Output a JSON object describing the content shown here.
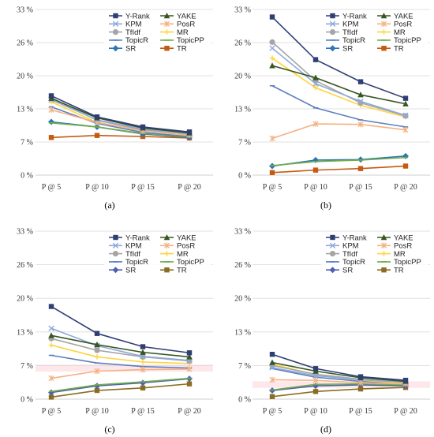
{
  "chart_data": [
    {
      "type": "line",
      "panel_label": "(a)",
      "categories": [
        "P @ 5",
        "P @ 10",
        "P @ 15",
        "P @ 20"
      ],
      "y_ticks": [
        "0 %",
        "7 %",
        "13 %",
        "20 %",
        "26 %",
        "33 %"
      ],
      "ylim": [
        0,
        33
      ],
      "legend_position": "top-right",
      "highlight_band": null,
      "series": [
        {
          "name": "Y-Rank",
          "color": "#2f3f73",
          "marker": "square",
          "values": [
            15.8,
            11.6,
            9.6,
            8.6
          ]
        },
        {
          "name": "YAKE",
          "color": "#375623",
          "marker": "triangle",
          "values": [
            15.3,
            11.4,
            9.4,
            8.4
          ]
        },
        {
          "name": "KPM",
          "color": "#8ea9db",
          "marker": "x",
          "values": [
            15.0,
            11.0,
            9.2,
            8.2
          ]
        },
        {
          "name": "PosR",
          "color": "#f4b183",
          "marker": "star",
          "values": [
            13.0,
            10.5,
            8.8,
            8.0
          ]
        },
        {
          "name": "TfIdf",
          "color": "#a5a5a5",
          "marker": "circle",
          "values": [
            15.4,
            10.9,
            9.0,
            8.1
          ]
        },
        {
          "name": "MR",
          "color": "#ffd43b",
          "marker": "plus",
          "values": [
            14.6,
            10.5,
            8.8,
            7.9
          ]
        },
        {
          "name": "TopicR",
          "color": "#5b7fbf",
          "marker": "dash",
          "values": [
            13.6,
            10.3,
            8.5,
            7.7
          ]
        },
        {
          "name": "TopicPP",
          "color": "#70ad47",
          "marker": "dash",
          "values": [
            10.4,
            9.6,
            8.3,
            7.6
          ]
        },
        {
          "name": "SR",
          "color": "#2e75b6",
          "marker": "diamond",
          "values": [
            10.6,
            9.6,
            8.2,
            7.5
          ]
        },
        {
          "name": "TR",
          "color": "#c55a11",
          "marker": "square",
          "values": [
            7.5,
            7.9,
            7.7,
            7.4
          ]
        }
      ]
    },
    {
      "type": "line",
      "panel_label": "(b)",
      "categories": [
        "P @ 5",
        "P @ 10",
        "P @ 15",
        "P @ 20"
      ],
      "y_ticks": [
        "0 %",
        "7 %",
        "13 %",
        "20 %",
        "26 %",
        "33 %"
      ],
      "ylim": [
        0,
        33
      ],
      "legend_position": "top-right",
      "highlight_band": null,
      "series": [
        {
          "name": "Y-Rank",
          "color": "#2f3f73",
          "marker": "square",
          "values": [
            31.5,
            23.0,
            18.6,
            15.3
          ]
        },
        {
          "name": "YAKE",
          "color": "#375623",
          "marker": "triangle",
          "values": [
            21.8,
            19.4,
            16.0,
            14.2
          ]
        },
        {
          "name": "KPM",
          "color": "#8ea9db",
          "marker": "x",
          "values": [
            25.3,
            18.2,
            14.7,
            11.9
          ]
        },
        {
          "name": "PosR",
          "color": "#f4b183",
          "marker": "star",
          "values": [
            7.3,
            10.2,
            10.1,
            9.0
          ]
        },
        {
          "name": "TfIdf",
          "color": "#a5a5a5",
          "marker": "circle",
          "values": [
            26.5,
            18.8,
            14.4,
            11.8
          ]
        },
        {
          "name": "MR",
          "color": "#ffd43b",
          "marker": "plus",
          "values": [
            23.3,
            17.4,
            13.9,
            11.6
          ]
        },
        {
          "name": "TopicR",
          "color": "#5b7fbf",
          "marker": "dash",
          "values": [
            17.8,
            13.4,
            11.0,
            9.6
          ]
        },
        {
          "name": "TopicPP",
          "color": "#70ad47",
          "marker": "dash",
          "values": [
            1.9,
            2.7,
            3.0,
            3.5
          ]
        },
        {
          "name": "SR",
          "color": "#2e75b6",
          "marker": "diamond",
          "values": [
            1.8,
            3.0,
            3.1,
            3.8
          ]
        },
        {
          "name": "TR",
          "color": "#c55a11",
          "marker": "square",
          "values": [
            0.5,
            1.0,
            1.3,
            1.8
          ]
        }
      ]
    },
    {
      "type": "line",
      "panel_label": "(c)",
      "categories": [
        "P @ 5",
        "P @ 10",
        "P @ 15",
        "P @ 20"
      ],
      "y_ticks": [
        "0 %",
        "7 %",
        "13 %",
        "20 %",
        "26 %",
        "33 %"
      ],
      "ylim": [
        0,
        33
      ],
      "legend_position": "top-right",
      "highlight_band": {
        "y0": 5.4,
        "y1": 6.8,
        "color": "#fde7ea"
      },
      "series": [
        {
          "name": "Y-Rank",
          "color": "#2f3f73",
          "marker": "square",
          "values": [
            18.2,
            12.9,
            10.3,
            9.1
          ]
        },
        {
          "name": "YAKE",
          "color": "#375623",
          "marker": "triangle",
          "values": [
            12.5,
            10.7,
            9.2,
            8.3
          ]
        },
        {
          "name": "KPM",
          "color": "#8ea9db",
          "marker": "x",
          "values": [
            13.9,
            10.5,
            8.4,
            7.6
          ]
        },
        {
          "name": "PosR",
          "color": "#f4b183",
          "marker": "star",
          "values": [
            4.1,
            5.5,
            5.8,
            5.9
          ]
        },
        {
          "name": "TfIdf",
          "color": "#a5a5a5",
          "marker": "circle",
          "values": [
            11.9,
            9.6,
            8.3,
            7.5
          ]
        },
        {
          "name": "MR",
          "color": "#ffd43b",
          "marker": "plus",
          "values": [
            10.6,
            8.3,
            7.3,
            7.0
          ]
        },
        {
          "name": "TopicR",
          "color": "#5b7fbf",
          "marker": "dash",
          "values": [
            8.6,
            7.1,
            6.4,
            6.1
          ]
        },
        {
          "name": "TopicPP",
          "color": "#70ad47",
          "marker": "dash",
          "values": [
            1.5,
            2.8,
            3.4,
            4.1
          ]
        },
        {
          "name": "SR",
          "color": "#4f5fb3",
          "marker": "diamond",
          "values": [
            1.3,
            2.6,
            3.2,
            4.0
          ]
        },
        {
          "name": "TR",
          "color": "#8a6d1f",
          "marker": "square",
          "values": [
            0.4,
            1.7,
            2.2,
            3.0
          ]
        }
      ]
    },
    {
      "type": "line",
      "panel_label": "(d)",
      "categories": [
        "P @ 5",
        "P @ 10",
        "P @ 15",
        "P @ 20"
      ],
      "y_ticks": [
        "0 %",
        "7 %",
        "13 %",
        "20 %",
        "26 %",
        "33 %"
      ],
      "ylim": [
        0,
        33
      ],
      "legend_position": "top-right",
      "highlight_band": {
        "y0": 2.2,
        "y1": 3.5,
        "color": "#fde7ea"
      },
      "series": [
        {
          "name": "Y-Rank",
          "color": "#2f3f73",
          "marker": "square",
          "values": [
            8.8,
            6.0,
            4.4,
            3.7
          ]
        },
        {
          "name": "YAKE",
          "color": "#375623",
          "marker": "triangle",
          "values": [
            7.2,
            5.5,
            4.2,
            3.5
          ]
        },
        {
          "name": "KPM",
          "color": "#8ea9db",
          "marker": "x",
          "values": [
            6.2,
            4.6,
            3.8,
            3.3
          ]
        },
        {
          "name": "PosR",
          "color": "#f4b183",
          "marker": "star",
          "values": [
            3.8,
            3.7,
            3.2,
            3.0
          ]
        },
        {
          "name": "TfIdf",
          "color": "#a5a5a5",
          "marker": "circle",
          "values": [
            6.6,
            4.9,
            3.9,
            3.3
          ]
        },
        {
          "name": "MR",
          "color": "#ffd43b",
          "marker": "plus",
          "values": [
            6.9,
            4.8,
            3.7,
            3.1
          ]
        },
        {
          "name": "TopicR",
          "color": "#5b7fbf",
          "marker": "dash",
          "values": [
            6.0,
            4.3,
            3.5,
            3.0
          ]
        },
        {
          "name": "TopicPP",
          "color": "#70ad47",
          "marker": "dash",
          "values": [
            1.8,
            2.9,
            3.0,
            2.8
          ]
        },
        {
          "name": "SR",
          "color": "#4f5fb3",
          "marker": "diamond",
          "values": [
            1.7,
            2.6,
            2.8,
            2.6
          ]
        },
        {
          "name": "TR",
          "color": "#8a6d1f",
          "marker": "square",
          "values": [
            0.5,
            1.5,
            2.0,
            2.3
          ]
        }
      ]
    }
  ]
}
